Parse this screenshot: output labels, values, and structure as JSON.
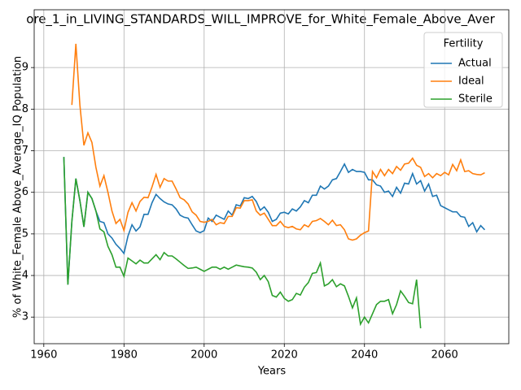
{
  "chart_data": {
    "type": "line",
    "title": "ore_1_in_LIVING_STANDARDS_WILL_IMPROVE_for_White_Female_Above_Aver",
    "x_label": "Years",
    "y_label": "% of White_Female Above_Average_IQ Population",
    "legend_title": "Fertility",
    "legend": "upper right",
    "grid": true,
    "xlim": [
      1957.6,
      2076
    ],
    "ylim": [
      2.36,
      10.39
    ],
    "xticks": [
      1960,
      1980,
      2000,
      2020,
      2040,
      2060
    ],
    "yticks": [
      3,
      4,
      5,
      6,
      7,
      8,
      9
    ],
    "series": [
      {
        "name": "Actual",
        "color": "#1f77b4",
        "x": [
          1965,
          1966,
          1967,
          1968,
          1969,
          1970,
          1971,
          1972,
          1973,
          1974,
          1975,
          1976,
          1977,
          1978,
          1979,
          1980,
          1981,
          1982,
          1983,
          1984,
          1985,
          1986,
          1987,
          1988,
          1989,
          1990,
          1991,
          1992,
          1993,
          1994,
          1995,
          1996,
          1997,
          1998,
          1999,
          2000,
          2001,
          2002,
          2003,
          2004,
          2005,
          2006,
          2007,
          2008,
          2009,
          2010,
          2011,
          2012,
          2013,
          2014,
          2015,
          2016,
          2017,
          2018,
          2019,
          2020,
          2021,
          2022,
          2023,
          2024,
          2025,
          2026,
          2027,
          2028,
          2029,
          2030,
          2031,
          2032,
          2033,
          2034,
          2035,
          2036,
          2037,
          2038,
          2039,
          2040,
          2041,
          2042,
          2043,
          2044,
          2045,
          2046,
          2047,
          2048,
          2049,
          2050,
          2051,
          2052,
          2053,
          2054,
          2055,
          2056,
          2057,
          2058,
          2059,
          2060,
          2061,
          2062,
          2063,
          2064,
          2065,
          2066,
          2067,
          2068,
          2069,
          2070
        ],
        "values": [
          6.85,
          3.78,
          5.3,
          6.33,
          5.8,
          5.17,
          6.0,
          5.85,
          5.55,
          5.3,
          5.27,
          5.0,
          4.9,
          4.75,
          4.65,
          4.53,
          4.95,
          5.22,
          5.07,
          5.17,
          5.47,
          5.47,
          5.75,
          5.95,
          5.85,
          5.77,
          5.72,
          5.7,
          5.6,
          5.45,
          5.4,
          5.38,
          5.22,
          5.07,
          5.03,
          5.08,
          5.38,
          5.3,
          5.45,
          5.4,
          5.35,
          5.55,
          5.45,
          5.7,
          5.67,
          5.87,
          5.85,
          5.9,
          5.78,
          5.57,
          5.65,
          5.52,
          5.3,
          5.35,
          5.5,
          5.52,
          5.48,
          5.6,
          5.55,
          5.65,
          5.8,
          5.75,
          5.93,
          5.93,
          6.15,
          6.08,
          6.15,
          6.3,
          6.33,
          6.5,
          6.68,
          6.48,
          6.55,
          6.5,
          6.5,
          6.48,
          6.3,
          6.3,
          6.18,
          6.15,
          6.0,
          6.03,
          5.9,
          6.12,
          5.98,
          6.22,
          6.2,
          6.45,
          6.2,
          6.28,
          6.03,
          6.2,
          5.9,
          5.93,
          5.68,
          5.63,
          5.58,
          5.53,
          5.53,
          5.42,
          5.4,
          5.18,
          5.27,
          5.05,
          5.2,
          5.1
        ]
      },
      {
        "name": "Ideal",
        "color": "#ff7f0e",
        "x": [
          1967,
          1968,
          1969,
          1970,
          1971,
          1972,
          1973,
          1974,
          1975,
          1976,
          1977,
          1978,
          1979,
          1980,
          1981,
          1982,
          1983,
          1984,
          1985,
          1986,
          1987,
          1988,
          1989,
          1990,
          1991,
          1992,
          1993,
          1994,
          1995,
          1996,
          1997,
          1998,
          1999,
          2000,
          2001,
          2002,
          2003,
          2004,
          2005,
          2006,
          2007,
          2008,
          2009,
          2010,
          2011,
          2012,
          2013,
          2014,
          2015,
          2016,
          2017,
          2018,
          2019,
          2020,
          2021,
          2022,
          2023,
          2024,
          2025,
          2026,
          2027,
          2028,
          2029,
          2030,
          2031,
          2032,
          2033,
          2034,
          2035,
          2036,
          2037,
          2038,
          2039,
          2040,
          2041,
          2042,
          2043,
          2044,
          2045,
          2046,
          2047,
          2048,
          2049,
          2050,
          2051,
          2052,
          2053,
          2054,
          2055,
          2056,
          2057,
          2058,
          2059,
          2060,
          2061,
          2062,
          2063,
          2064,
          2065,
          2066,
          2067,
          2068,
          2069,
          2070
        ],
        "values": [
          8.1,
          9.57,
          8.1,
          7.13,
          7.43,
          7.2,
          6.6,
          6.15,
          6.4,
          6.0,
          5.55,
          5.25,
          5.35,
          5.08,
          5.52,
          5.75,
          5.55,
          5.78,
          5.88,
          5.87,
          6.13,
          6.43,
          6.12,
          6.33,
          6.27,
          6.27,
          6.08,
          5.87,
          5.82,
          5.72,
          5.53,
          5.45,
          5.3,
          5.28,
          5.3,
          5.35,
          5.22,
          5.27,
          5.25,
          5.42,
          5.42,
          5.63,
          5.62,
          5.8,
          5.8,
          5.82,
          5.55,
          5.45,
          5.5,
          5.35,
          5.2,
          5.2,
          5.3,
          5.18,
          5.15,
          5.18,
          5.12,
          5.1,
          5.22,
          5.17,
          5.3,
          5.32,
          5.37,
          5.3,
          5.22,
          5.33,
          5.2,
          5.22,
          5.1,
          4.88,
          4.85,
          4.88,
          4.97,
          5.03,
          5.07,
          6.5,
          6.35,
          6.55,
          6.4,
          6.55,
          6.45,
          6.62,
          6.53,
          6.68,
          6.7,
          6.82,
          6.65,
          6.6,
          6.38,
          6.45,
          6.35,
          6.45,
          6.4,
          6.48,
          6.42,
          6.67,
          6.52,
          6.78,
          6.5,
          6.52,
          6.45,
          6.43,
          6.42,
          6.47
        ]
      },
      {
        "name": "Sterile",
        "color": "#2ca02c",
        "x": [
          1965,
          1966,
          1967,
          1968,
          1969,
          1970,
          1971,
          1972,
          1973,
          1974,
          1975,
          1976,
          1977,
          1978,
          1979,
          1980,
          1981,
          1982,
          1983,
          1984,
          1985,
          1986,
          1987,
          1988,
          1989,
          1990,
          1991,
          1992,
          1993,
          1994,
          1995,
          1996,
          1997,
          1998,
          1999,
          2000,
          2001,
          2002,
          2003,
          2004,
          2005,
          2006,
          2007,
          2008,
          2009,
          2010,
          2011,
          2012,
          2013,
          2014,
          2015,
          2016,
          2017,
          2018,
          2019,
          2020,
          2021,
          2022,
          2023,
          2024,
          2025,
          2026,
          2027,
          2028,
          2029,
          2030,
          2031,
          2032,
          2033,
          2034,
          2035,
          2036,
          2037,
          2038,
          2039,
          2040,
          2041,
          2042,
          2043,
          2044,
          2045,
          2046,
          2047,
          2048,
          2049,
          2050,
          2051,
          2052,
          2053,
          2054
        ],
        "values": [
          6.85,
          3.78,
          5.3,
          6.33,
          5.8,
          5.17,
          6.0,
          5.85,
          5.55,
          5.12,
          5.05,
          4.7,
          4.5,
          4.2,
          4.2,
          3.98,
          4.42,
          4.35,
          4.28,
          4.37,
          4.3,
          4.3,
          4.4,
          4.5,
          4.38,
          4.55,
          4.47,
          4.47,
          4.4,
          4.32,
          4.24,
          4.17,
          4.18,
          4.2,
          4.15,
          4.1,
          4.15,
          4.2,
          4.2,
          4.15,
          4.2,
          4.15,
          4.2,
          4.25,
          4.23,
          4.21,
          4.2,
          4.18,
          4.08,
          3.9,
          4.0,
          3.85,
          3.52,
          3.48,
          3.6,
          3.45,
          3.38,
          3.42,
          3.57,
          3.53,
          3.72,
          3.83,
          4.05,
          4.07,
          4.3,
          3.75,
          3.8,
          3.9,
          3.73,
          3.8,
          3.75,
          3.5,
          3.22,
          3.46,
          2.83,
          3.0,
          2.86,
          3.08,
          3.3,
          3.38,
          3.38,
          3.42,
          3.08,
          3.3,
          3.63,
          3.5,
          3.35,
          3.32,
          3.9,
          2.73
        ]
      }
    ]
  }
}
